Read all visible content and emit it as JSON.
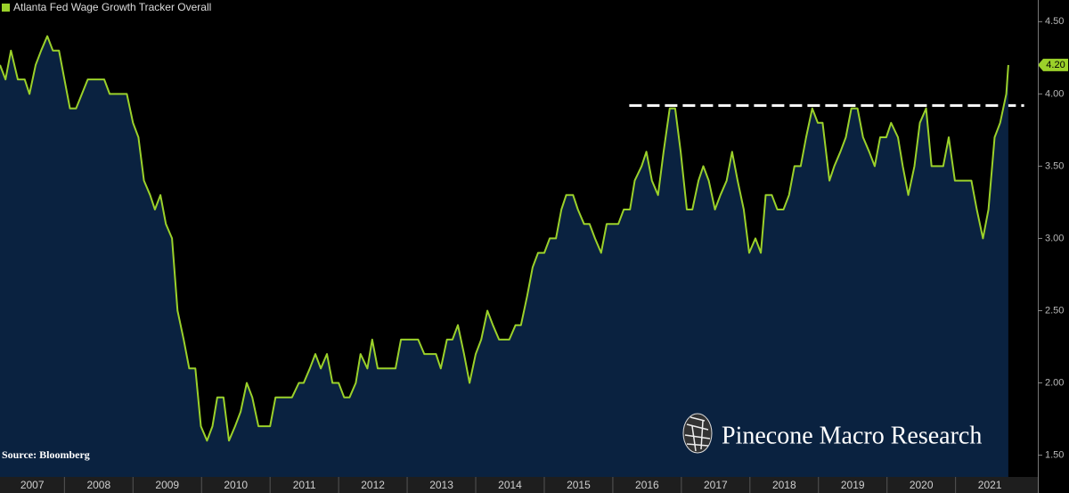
{
  "chart_data": {
    "type": "line",
    "source": "Source: Bloomberg",
    "watermark": "Pinecone Macro Research",
    "x": [
      2007.06,
      2007.14,
      2007.22,
      2007.32,
      2007.42,
      2007.49,
      2007.58,
      2007.66,
      2007.75,
      2007.83,
      2007.92,
      2008.08,
      2008.17,
      2008.34,
      2008.58,
      2008.66,
      2008.91,
      2009.0,
      2009.08,
      2009.16,
      2009.25,
      2009.32,
      2009.4,
      2009.48,
      2009.57,
      2009.65,
      2009.74,
      2009.82,
      2009.91,
      2009.99,
      2010.08,
      2010.16,
      2010.23,
      2010.32,
      2010.4,
      2010.49,
      2010.57,
      2010.66,
      2010.74,
      2010.83,
      2011.0,
      2011.08,
      2011.32,
      2011.42,
      2011.49,
      2011.58,
      2011.66,
      2011.74,
      2011.83,
      2011.91,
      2012.0,
      2012.08,
      2012.16,
      2012.25,
      2012.32,
      2012.42,
      2012.49,
      2012.57,
      2012.83,
      2012.91,
      2013.16,
      2013.25,
      2013.42,
      2013.49,
      2013.58,
      2013.66,
      2013.74,
      2013.83,
      2013.91,
      2014.0,
      2014.08,
      2014.17,
      2014.25,
      2014.34,
      2014.49,
      2014.58,
      2014.66,
      2014.75,
      2014.83,
      2014.91,
      2015.0,
      2015.08,
      2015.17,
      2015.25,
      2015.32,
      2015.42,
      2015.49,
      2015.58,
      2015.66,
      2015.74,
      2015.83,
      2015.91,
      2016.08,
      2016.16,
      2016.25,
      2016.32,
      2016.42,
      2016.49,
      2016.57,
      2016.66,
      2016.74,
      2016.83,
      2016.91,
      2016.99,
      2017.08,
      2017.16,
      2017.25,
      2017.32,
      2017.4,
      2017.49,
      2017.57,
      2017.66,
      2017.74,
      2017.82,
      2017.91,
      2017.99,
      2018.08,
      2018.16,
      2018.23,
      2018.32,
      2018.4,
      2018.49,
      2018.57,
      2018.65,
      2018.74,
      2018.82,
      2018.91,
      2018.99,
      2019.06,
      2019.16,
      2019.23,
      2019.32,
      2019.4,
      2019.48,
      2019.57,
      2019.65,
      2019.74,
      2019.82,
      2019.9,
      2019.99,
      2020.06,
      2020.16,
      2020.23,
      2020.31,
      2020.4,
      2020.48,
      2020.57,
      2020.65,
      2020.82,
      2020.9,
      2020.99,
      2021.23,
      2021.31,
      2021.4,
      2021.48,
      2021.57,
      2021.65,
      2021.74,
      2021.77
    ],
    "series": [
      {
        "name": "Atlanta Fed Wage Growth Tracker Overall",
        "color": "#9bd12a",
        "area_color": "#0a2240",
        "values": [
          4.2,
          4.1,
          4.3,
          4.1,
          4.1,
          4.0,
          4.2,
          4.3,
          4.4,
          4.3,
          4.3,
          3.9,
          3.9,
          4.1,
          4.1,
          4.0,
          4.0,
          3.8,
          3.7,
          3.4,
          3.3,
          3.2,
          3.3,
          3.1,
          3.0,
          2.5,
          2.3,
          2.1,
          2.1,
          1.7,
          1.6,
          1.7,
          1.9,
          1.9,
          1.6,
          1.7,
          1.8,
          2.0,
          1.9,
          1.7,
          1.7,
          1.9,
          1.9,
          2.0,
          2.0,
          2.1,
          2.2,
          2.1,
          2.2,
          2.0,
          2.0,
          1.9,
          1.9,
          2.0,
          2.2,
          2.1,
          2.3,
          2.1,
          2.1,
          2.3,
          2.3,
          2.2,
          2.2,
          2.1,
          2.3,
          2.3,
          2.4,
          2.2,
          2.0,
          2.2,
          2.3,
          2.5,
          2.4,
          2.3,
          2.3,
          2.4,
          2.4,
          2.6,
          2.8,
          2.9,
          2.9,
          3.0,
          3.0,
          3.2,
          3.3,
          3.3,
          3.2,
          3.1,
          3.1,
          3.0,
          2.9,
          3.1,
          3.1,
          3.2,
          3.2,
          3.4,
          3.5,
          3.6,
          3.4,
          3.3,
          3.6,
          3.9,
          3.9,
          3.6,
          3.2,
          3.2,
          3.4,
          3.5,
          3.4,
          3.2,
          3.3,
          3.4,
          3.6,
          3.4,
          3.2,
          2.9,
          3.0,
          2.9,
          3.3,
          3.3,
          3.2,
          3.2,
          3.3,
          3.5,
          3.5,
          3.7,
          3.9,
          3.8,
          3.8,
          3.4,
          3.5,
          3.6,
          3.7,
          3.9,
          3.9,
          3.7,
          3.6,
          3.5,
          3.7,
          3.7,
          3.8,
          3.7,
          3.5,
          3.3,
          3.5,
          3.8,
          3.9,
          3.5,
          3.5,
          3.7,
          3.4,
          3.4,
          3.2,
          3.0,
          3.2,
          3.7,
          3.8,
          4.0,
          4.2
        ],
        "last_value_label": "4.20"
      }
    ],
    "reference_line": {
      "y": 3.92,
      "x": [
        2016.24,
        2022.0
      ],
      "color": "#ffffff"
    },
    "xlim": [
      2007.06,
      2022.2
    ],
    "xticks": [
      2007,
      2008,
      2009,
      2010,
      2011,
      2012,
      2013,
      2014,
      2015,
      2016,
      2017,
      2018,
      2019,
      2020,
      2021
    ],
    "ylim": [
      1.38,
      4.65
    ],
    "yticks": [
      {
        "value": 1.5,
        "label": "1.50"
      },
      {
        "value": 2,
        "label": "2.00"
      },
      {
        "value": 2.5,
        "label": "2.50"
      },
      {
        "value": 3,
        "label": "3.00"
      },
      {
        "value": 3.5,
        "label": "3.50"
      },
      {
        "value": 4,
        "label": "4.00"
      },
      {
        "value": 4.5,
        "label": "4.50"
      }
    ],
    "y_axis_side": "right",
    "grid": false
  }
}
